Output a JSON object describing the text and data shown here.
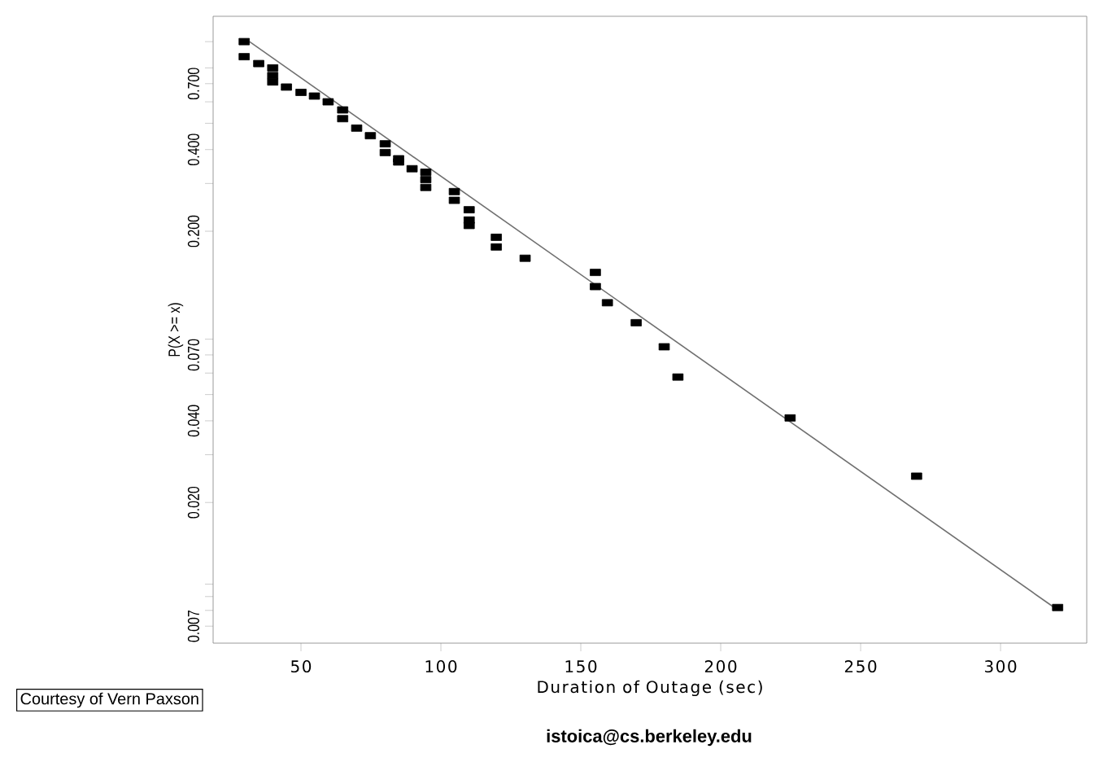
{
  "chart_data": {
    "type": "scatter",
    "xlabel": "Duration of Outage (sec)",
    "ylabel": "P(X >= x)",
    "log": "y",
    "xlim": [
      18.6,
      330.8
    ],
    "ylim": [
      0.00606,
      1.24
    ],
    "xticks": [
      50,
      100,
      150,
      200,
      250,
      300
    ],
    "yticks": [
      {
        "value": 0.007,
        "label": "0.007"
      },
      {
        "value": 0.008,
        "label": null
      },
      {
        "value": 0.009,
        "label": null
      },
      {
        "value": 0.01,
        "label": null
      },
      {
        "value": 0.02,
        "label": "0.020"
      },
      {
        "value": 0.03,
        "label": null
      },
      {
        "value": 0.04,
        "label": "0.040"
      },
      {
        "value": 0.05,
        "label": null
      },
      {
        "value": 0.06,
        "label": null
      },
      {
        "value": 0.07,
        "label": "0.070"
      },
      {
        "value": 0.08,
        "label": null
      },
      {
        "value": 0.2,
        "label": "0.200"
      },
      {
        "value": 0.3,
        "label": null
      },
      {
        "value": 0.4,
        "label": "0.400"
      },
      {
        "value": 0.5,
        "label": null
      },
      {
        "value": 0.6,
        "label": null
      },
      {
        "value": 0.7,
        "label": "0.700"
      },
      {
        "value": 0.8,
        "label": null
      },
      {
        "value": 1.0,
        "label": null
      }
    ],
    "series": [
      {
        "color": "#000000",
        "marker": "square",
        "x": [
          29.7,
          29.7,
          34.9,
          39.9,
          39.9,
          39.9,
          44.8,
          50.0,
          54.8,
          59.7,
          64.9,
          64.9,
          69.9,
          74.8,
          80.1,
          80.1,
          84.9,
          84.9,
          89.7,
          94.6,
          94.6,
          94.6,
          104.8,
          104.8,
          110.1,
          110.1,
          110.1,
          119.8,
          119.8,
          130.1,
          155.2,
          155.2,
          159.5,
          169.8,
          179.8,
          184.7,
          224.8,
          270.0,
          320.4
        ],
        "values": [
          1.0,
          0.88,
          0.83,
          0.8,
          0.75,
          0.71,
          0.68,
          0.65,
          0.63,
          0.6,
          0.56,
          0.52,
          0.48,
          0.45,
          0.42,
          0.39,
          0.37,
          0.36,
          0.34,
          0.33,
          0.31,
          0.29,
          0.28,
          0.26,
          0.24,
          0.22,
          0.21,
          0.19,
          0.175,
          0.159,
          0.141,
          0.125,
          0.109,
          0.092,
          0.075,
          0.058,
          0.041,
          0.025,
          0.0082
        ]
      },
      {
        "type": "line",
        "marker": "none",
        "color": "#707070",
        "x": [
          31.6,
          319.2
        ],
        "values": [
          1.0,
          0.0082
        ]
      }
    ],
    "annotations": [
      "Courtesy of Vern Paxson",
      "istoica@cs.berkeley.edu"
    ]
  }
}
